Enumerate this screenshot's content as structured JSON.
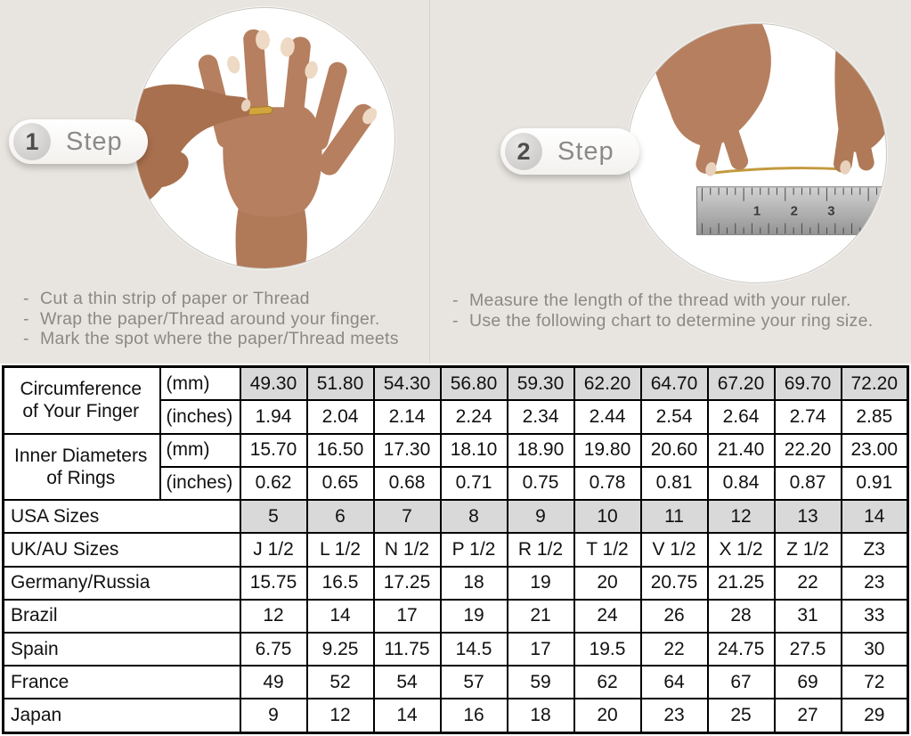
{
  "steps": [
    {
      "number": "1",
      "label": "Step",
      "bullets": [
        "Cut a thin strip of paper or Thread",
        "Wrap the paper/Thread around your finger.",
        "Mark the spot where the paper/Thread meets"
      ]
    },
    {
      "number": "2",
      "label": "Step",
      "bullets": [
        "Measure the length of the thread with your ruler.",
        "Use the following chart to determine your ring size."
      ]
    }
  ],
  "size_chart": {
    "measure_groups": [
      {
        "label_line1": "Circumference",
        "label_line2": "of Your Finger",
        "rows": [
          {
            "unit": "(mm)",
            "shaded": true,
            "values": [
              "49.30",
              "51.80",
              "54.30",
              "56.80",
              "59.30",
              "62.20",
              "64.70",
              "67.20",
              "69.70",
              "72.20"
            ]
          },
          {
            "unit": "(inches)",
            "shaded": false,
            "values": [
              "1.94",
              "2.04",
              "2.14",
              "2.24",
              "2.34",
              "2.44",
              "2.54",
              "2.64",
              "2.74",
              "2.85"
            ]
          }
        ]
      },
      {
        "label_line1": "Inner Diameters",
        "label_line2": "of Rings",
        "rows": [
          {
            "unit": "(mm)",
            "shaded": false,
            "values": [
              "15.70",
              "16.50",
              "17.30",
              "18.10",
              "18.90",
              "19.80",
              "20.60",
              "21.40",
              "22.20",
              "23.00"
            ]
          },
          {
            "unit": "(inches)",
            "shaded": false,
            "values": [
              "0.62",
              "0.65",
              "0.68",
              "0.71",
              "0.75",
              "0.78",
              "0.81",
              "0.84",
              "0.87",
              "0.91"
            ]
          }
        ]
      }
    ],
    "size_rows": [
      {
        "label": "USA Sizes",
        "shaded": true,
        "values": [
          "5",
          "6",
          "7",
          "8",
          "9",
          "10",
          "11",
          "12",
          "13",
          "14"
        ]
      },
      {
        "label": "UK/AU Sizes",
        "shaded": false,
        "values": [
          "J 1/2",
          "L 1/2",
          "N 1/2",
          "P 1/2",
          "R 1/2",
          "T 1/2",
          "V 1/2",
          "X 1/2",
          "Z 1/2",
          "Z3"
        ]
      },
      {
        "label": "Germany/Russia",
        "shaded": false,
        "values": [
          "15.75",
          "16.5",
          "17.25",
          "18",
          "19",
          "20",
          "20.75",
          "21.25",
          "22",
          "23"
        ]
      },
      {
        "label": "Brazil",
        "shaded": false,
        "values": [
          "12",
          "14",
          "17",
          "19",
          "21",
          "24",
          "26",
          "28",
          "31",
          "33"
        ]
      },
      {
        "label": "Spain",
        "shaded": false,
        "values": [
          "6.75",
          "9.25",
          "11.75",
          "14.5",
          "17",
          "19.5",
          "22",
          "24.75",
          "27.5",
          "30"
        ]
      },
      {
        "label": "France",
        "shaded": false,
        "values": [
          "49",
          "52",
          "54",
          "57",
          "59",
          "62",
          "64",
          "67",
          "69",
          "72"
        ]
      },
      {
        "label": "Japan",
        "shaded": false,
        "values": [
          "9",
          "12",
          "14",
          "16",
          "18",
          "20",
          "23",
          "25",
          "27",
          "29"
        ]
      }
    ]
  },
  "illustrations": {
    "step1_photo": "hand-with-ring-being-measured",
    "step2_photo": "two-hands-holding-thread-over-ruler",
    "ruler_numbers": [
      "1",
      "2",
      "3"
    ]
  },
  "colors": {
    "page_background": "#e8e5e0",
    "shaded_cell": "#d9d9d9",
    "table_border": "#000000",
    "bullet_text": "#8b8885",
    "step_text": "#8a8a8a",
    "skin_tone": "#b67f5f",
    "thread_gold": "#c49a3f"
  }
}
